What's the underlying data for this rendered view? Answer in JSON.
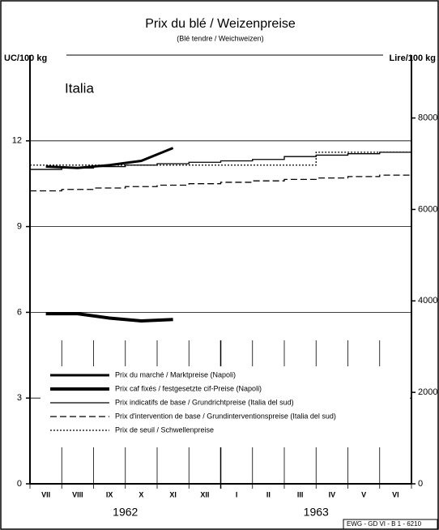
{
  "chart_data": {
    "type": "line",
    "title": "Prix du blé / Weizenpreise",
    "subtitle": "(Blé tendre / Weichweizen)",
    "annotation": "Italia",
    "ylabel": "UC/100 kg",
    "y2label": "Lire/100 kg",
    "footer": "EWG - GD VI - B 1 - 6210",
    "categories": [
      "VII",
      "VIII",
      "IX",
      "X",
      "XI",
      "XII",
      "I",
      "II",
      "III",
      "IV",
      "V",
      "VI"
    ],
    "year_labels": [
      "1962",
      "1963"
    ],
    "ylim": [
      0,
      15
    ],
    "yticks": [
      0,
      3,
      6,
      9,
      12
    ],
    "y2lim": [
      0,
      9375
    ],
    "y2ticks": [
      0,
      2000,
      4000,
      6000,
      8000
    ],
    "grid": true,
    "series": [
      {
        "name": "Prix du marché / Marktpreise (Napoli)",
        "color": "#000000",
        "style": "solid",
        "width": 3,
        "values": [
          11.1,
          11.05,
          11.15,
          11.3,
          11.75,
          null,
          null,
          null,
          null,
          null,
          null,
          null
        ]
      },
      {
        "name": "Prix caf fixés / festgesetzte cif-Preise (Napoli)",
        "color": "#000000",
        "style": "solid",
        "width": 4,
        "values": [
          5.95,
          5.95,
          5.8,
          5.7,
          5.75,
          null,
          null,
          null,
          null,
          null,
          null,
          null
        ]
      },
      {
        "name": "Prix indicatifs de base / Grundrichtpreise (Italia del sud)",
        "color": "#000000",
        "style": "solid",
        "width": 1.3,
        "step": true,
        "values": [
          11.0,
          11.05,
          11.1,
          11.15,
          11.2,
          11.25,
          11.3,
          11.35,
          11.45,
          11.5,
          11.55,
          11.6
        ]
      },
      {
        "name": "Prix d'intervention de base / Grundinterventionspreise (Italia del sud)",
        "color": "#000000",
        "style": "dashed",
        "width": 1.3,
        "step": true,
        "values": [
          10.25,
          10.3,
          10.35,
          10.4,
          10.45,
          10.5,
          10.55,
          10.6,
          10.65,
          10.7,
          10.75,
          10.8
        ]
      },
      {
        "name": "Prix de seuil / Schwellenpreise",
        "color": "#000000",
        "style": "dotted",
        "width": 1.3,
        "step": true,
        "values": [
          11.15,
          11.15,
          11.15,
          11.15,
          11.15,
          11.15,
          11.15,
          11.15,
          11.15,
          11.6,
          11.6,
          11.6
        ]
      }
    ]
  }
}
